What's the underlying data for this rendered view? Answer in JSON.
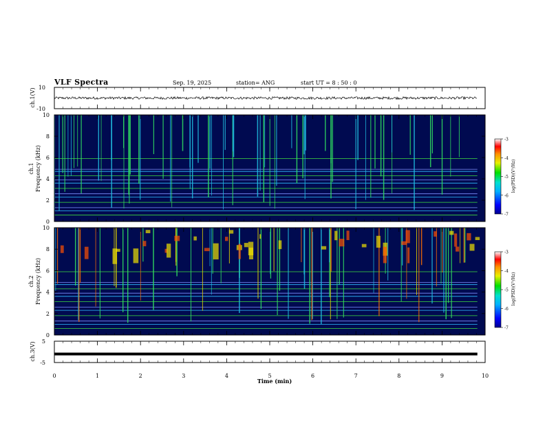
{
  "header": {
    "title": "VLF Spectra",
    "date": "Sep. 19, 2025",
    "station": "station= ANG",
    "start": "start  UT =   8 : 50 : 0"
  },
  "chart_data": [
    {
      "type": "line",
      "id": "ch1-waveform",
      "ylabel": "ch.1(V)",
      "ylim": [
        -10,
        10
      ],
      "tick_labels": [
        "10",
        "-10"
      ],
      "baseline": 0,
      "amplitude": 1.2
    },
    {
      "type": "heatmap",
      "id": "ch1-spectrogram",
      "ylabel_line1": "ch.1",
      "ylabel_line2": "Frequency  (kHz)",
      "ylim": [
        0,
        10
      ],
      "yticks": [
        "0",
        "2",
        "4",
        "6",
        "8",
        "10"
      ],
      "colorbar": {
        "label": "log(PSD)(V²/Hz)",
        "range": [
          -7,
          -3
        ],
        "ticks": [
          "-3",
          "-4",
          "-5",
          "-6",
          "-7"
        ]
      }
    },
    {
      "type": "heatmap",
      "id": "ch2-spectrogram",
      "ylabel_line1": "ch.2",
      "ylabel_line2": "Frequency  (kHz)",
      "ylim": [
        0,
        10
      ],
      "yticks": [
        "0",
        "2",
        "4",
        "6",
        "8",
        "10"
      ],
      "colorbar": {
        "label": "log(PSD)(V²/Hz)",
        "range": [
          -7,
          -3
        ],
        "ticks": [
          "-3",
          "-4",
          "-5",
          "-6",
          "-7"
        ]
      }
    },
    {
      "type": "line",
      "id": "ch3-waveform",
      "ylabel": "ch.3(V)",
      "ylim": [
        -5,
        5
      ],
      "tick_labels": [
        "5",
        "-5"
      ],
      "baseline": -1.0
    }
  ],
  "xaxis": {
    "label": "Time  (min)",
    "range": [
      0,
      10
    ],
    "ticks": [
      "0",
      "1",
      "2",
      "3",
      "4",
      "5",
      "6",
      "7",
      "8",
      "9",
      "10"
    ],
    "data_end_min": 9.82
  }
}
